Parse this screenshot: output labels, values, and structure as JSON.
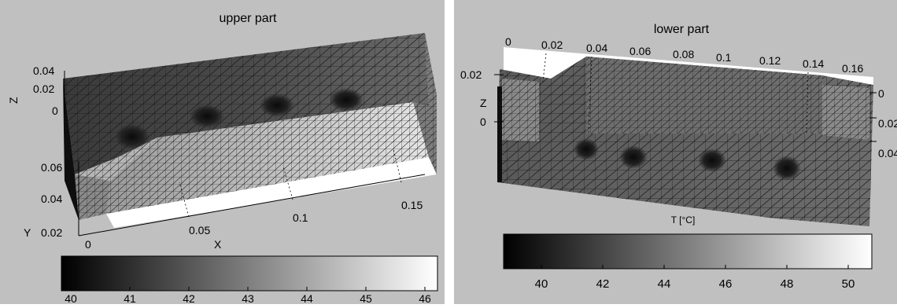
{
  "left_panel": {
    "title": "upper part",
    "x_axis_label": "X",
    "y_axis_label": "Y",
    "z_axis_label": "Z",
    "x_ticks": [
      "0",
      "0.05",
      "0.1",
      "0.15"
    ],
    "y_ticks": [
      "0.02",
      "0.04",
      "0.06"
    ],
    "z_ticks": [
      "0",
      "0.02",
      "0.04"
    ],
    "colorbar_ticks": [
      "40",
      "41",
      "42",
      "43",
      "44",
      "45",
      "46"
    ]
  },
  "right_panel": {
    "title": "lower part",
    "z_axis_label": "Z",
    "colorbar_label": "T [°C]",
    "x_ticks": [
      "0",
      "0.02",
      "0.04",
      "0.06",
      "0.08",
      "0.1",
      "0.12",
      "0.14",
      "0.16"
    ],
    "z_ticks": [
      "0.02",
      "0"
    ],
    "y_ticks": [
      "0",
      "0.02",
      "0.04"
    ],
    "colorbar_ticks": [
      "40",
      "42",
      "44",
      "46",
      "48",
      "50"
    ]
  },
  "colors": {
    "background": "#c0c0c0",
    "panel_border": "#ffffff",
    "colorbar_low": "#000000",
    "colorbar_high": "#ffffff"
  }
}
